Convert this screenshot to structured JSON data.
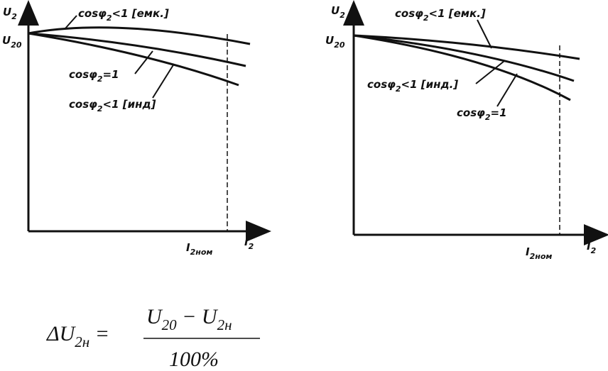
{
  "left": {
    "axis_y": [
      "U",
      "2"
    ],
    "u20": [
      "U",
      "20"
    ],
    "curve_labels": [
      [
        "cosφ",
        "2",
        "<1 [емк.]"
      ],
      [
        "cosφ",
        "2",
        "=1"
      ],
      [
        "cosφ",
        "2",
        "<1 [инд]"
      ]
    ],
    "x_rated": [
      "I",
      "2ном"
    ],
    "axis_x": [
      "I",
      "2"
    ]
  },
  "right": {
    "axis_y": [
      "U",
      "2"
    ],
    "u20": [
      "U",
      "20"
    ],
    "curve_labels": [
      [
        "cosφ",
        "2",
        "<1 [емк.]"
      ],
      [
        "cosφ",
        "2",
        "<1 [инд.]"
      ],
      [
        "cosφ",
        "2",
        "=1"
      ]
    ],
    "x_rated": [
      "I",
      "2ном"
    ],
    "axis_x": [
      "I",
      "2"
    ]
  },
  "formula": {
    "lhs": [
      "ΔU",
      "2н",
      " ="
    ],
    "numerator": [
      "U",
      "20",
      " − U",
      "2н"
    ],
    "denominator": [
      "100%"
    ]
  }
}
